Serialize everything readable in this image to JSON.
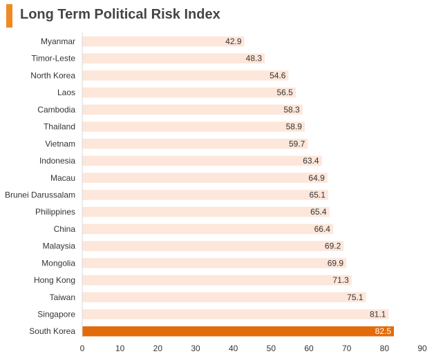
{
  "header": {
    "title": "Long Term Political Risk Index"
  },
  "colors": {
    "accent": "#f08a24",
    "bar": "#fde6da",
    "highlight_bar": "#e36c0a",
    "axis": "#d9d9d9",
    "text": "#333333"
  },
  "chart_data": {
    "type": "bar",
    "orientation": "horizontal",
    "title": "Long Term Political Risk Index",
    "categories": [
      "Myanmar",
      "Timor-Leste",
      "North Korea",
      "Laos",
      "Cambodia",
      "Thailand",
      "Vietnam",
      "Indonesia",
      "Macau",
      "Brunei Darussalam",
      "Philippines",
      "China",
      "Malaysia",
      "Mongolia",
      "Hong Kong",
      "Taiwan",
      "Singapore",
      "South Korea"
    ],
    "values": [
      42.9,
      48.3,
      54.6,
      56.5,
      58.3,
      58.9,
      59.7,
      63.4,
      64.9,
      65.1,
      65.4,
      66.4,
      69.2,
      69.9,
      71.3,
      75.1,
      81.1,
      82.5
    ],
    "highlighted_category": "South Korea",
    "xlim": [
      0,
      90
    ],
    "xticks": [
      0,
      10,
      20,
      30,
      40,
      50,
      60,
      70,
      80,
      90
    ],
    "grid": false,
    "data_labels": true
  }
}
